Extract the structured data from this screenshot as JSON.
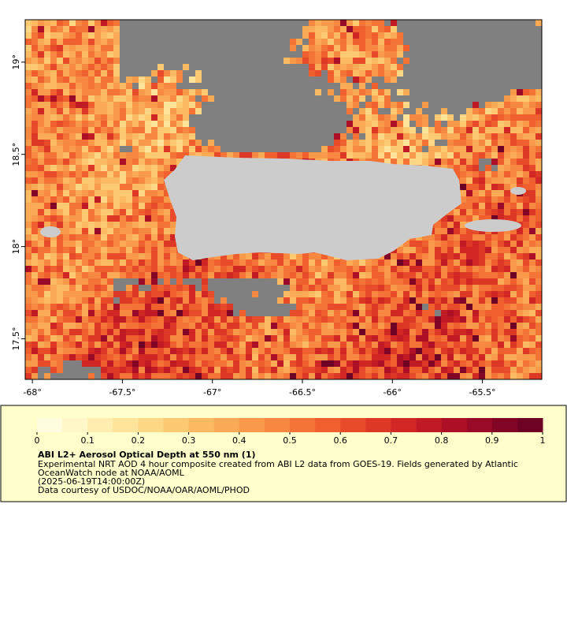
{
  "map": {
    "xlim": [
      -68.04,
      -65.17
    ],
    "ylim": [
      17.28,
      19.23
    ],
    "xticks": [
      {
        "value": -68,
        "label": "-68°"
      },
      {
        "value": -67.5,
        "label": "-67.5°"
      },
      {
        "value": -67,
        "label": "-67°"
      },
      {
        "value": -66.5,
        "label": "-66.5°"
      },
      {
        "value": -66,
        "label": "-66°"
      },
      {
        "value": -65.5,
        "label": "-65.5°"
      }
    ],
    "yticks": [
      {
        "value": 17.5,
        "label": "17.5°"
      },
      {
        "value": 18,
        "label": "18°"
      },
      {
        "value": 18.5,
        "label": "18.5°"
      },
      {
        "value": 19,
        "label": "19°"
      }
    ],
    "cloud_color": "#808080",
    "land_color": "#cccccc"
  },
  "colorbar": {
    "range": [
      0,
      1
    ],
    "ticks": [
      0,
      0.1,
      0.2,
      0.3,
      0.4,
      0.5,
      0.6,
      0.7,
      0.8,
      0.9,
      1
    ],
    "colors": [
      "#fffde0",
      "#fff7c8",
      "#ffeeb0",
      "#ffe49a",
      "#ffd885",
      "#fdca72",
      "#fcbb62",
      "#fbab55",
      "#f99a4b",
      "#f78841",
      "#f47437",
      "#f0602f",
      "#e84b29",
      "#dd3826",
      "#d02724",
      "#c01a24",
      "#ad1026",
      "#980a27",
      "#830526",
      "#6e0224"
    ]
  },
  "legend": {
    "title": "ABI L2+ Aerosol Optical Depth at 550 nm (1)",
    "lines": [
      "Experimental NRT AOD 4 hour composite created from ABI L2 data from GOES-19. Fields generated by Atlantic",
      "OceanWatch node at NOAA/AOML",
      "(2025-06-19T14:00:00Z)",
      "Data courtesy of USDOC/NOAA/OAR/AOML/PHOD"
    ]
  }
}
